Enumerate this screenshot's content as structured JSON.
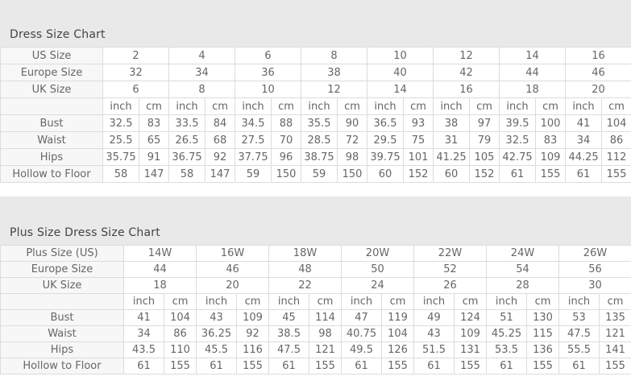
{
  "colors": {
    "page_bg": "#ffffff",
    "panel_bg": "#e9e9e9",
    "border": "#dcdcdc",
    "label_bg": "#f7f7f7",
    "cell_bg": "#ffffff",
    "title_text": "#444444",
    "cell_text": "#666666"
  },
  "tables": [
    {
      "title": "Dress Size Chart",
      "units": {
        "inch": "inch",
        "cm": "cm"
      },
      "size_rows": [
        {
          "label": "US Size",
          "values": [
            "2",
            "4",
            "6",
            "8",
            "10",
            "12",
            "14",
            "16"
          ]
        },
        {
          "label": "Europe Size",
          "values": [
            "32",
            "34",
            "36",
            "38",
            "40",
            "42",
            "44",
            "46"
          ]
        },
        {
          "label": "UK Size",
          "values": [
            "6",
            "8",
            "10",
            "12",
            "14",
            "16",
            "18",
            "20"
          ]
        }
      ],
      "measure_rows": [
        {
          "label": "Bust",
          "pairs": [
            [
              "32.5",
              "83"
            ],
            [
              "33.5",
              "84"
            ],
            [
              "34.5",
              "88"
            ],
            [
              "35.5",
              "90"
            ],
            [
              "36.5",
              "93"
            ],
            [
              "38",
              "97"
            ],
            [
              "39.5",
              "100"
            ],
            [
              "41",
              "104"
            ]
          ]
        },
        {
          "label": "Waist",
          "pairs": [
            [
              "25.5",
              "65"
            ],
            [
              "26.5",
              "68"
            ],
            [
              "27.5",
              "70"
            ],
            [
              "28.5",
              "72"
            ],
            [
              "29.5",
              "75"
            ],
            [
              "31",
              "79"
            ],
            [
              "32.5",
              "83"
            ],
            [
              "34",
              "86"
            ]
          ]
        },
        {
          "label": "Hips",
          "pairs": [
            [
              "35.75",
              "91"
            ],
            [
              "36.75",
              "92"
            ],
            [
              "37.75",
              "96"
            ],
            [
              "38.75",
              "98"
            ],
            [
              "39.75",
              "101"
            ],
            [
              "41.25",
              "105"
            ],
            [
              "42.75",
              "109"
            ],
            [
              "44.25",
              "112"
            ]
          ]
        },
        {
          "label": "Hollow to Floor",
          "pairs": [
            [
              "58",
              "147"
            ],
            [
              "58",
              "147"
            ],
            [
              "59",
              "150"
            ],
            [
              "59",
              "150"
            ],
            [
              "60",
              "152"
            ],
            [
              "60",
              "152"
            ],
            [
              "61",
              "155"
            ],
            [
              "61",
              "155"
            ]
          ]
        }
      ]
    },
    {
      "title": "Plus Size Dress Size Chart",
      "units": {
        "inch": "inch",
        "cm": "cm"
      },
      "size_rows": [
        {
          "label": "Plus Size (US)",
          "values": [
            "14W",
            "16W",
            "18W",
            "20W",
            "22W",
            "24W",
            "26W"
          ]
        },
        {
          "label": "Europe Size",
          "values": [
            "44",
            "46",
            "48",
            "50",
            "52",
            "54",
            "56"
          ]
        },
        {
          "label": "UK Size",
          "values": [
            "18",
            "20",
            "22",
            "24",
            "26",
            "28",
            "30"
          ]
        }
      ],
      "measure_rows": [
        {
          "label": "Bust",
          "pairs": [
            [
              "41",
              "104"
            ],
            [
              "43",
              "109"
            ],
            [
              "45",
              "114"
            ],
            [
              "47",
              "119"
            ],
            [
              "49",
              "124"
            ],
            [
              "51",
              "130"
            ],
            [
              "53",
              "135"
            ]
          ]
        },
        {
          "label": "Waist",
          "pairs": [
            [
              "34",
              "86"
            ],
            [
              "36.25",
              "92"
            ],
            [
              "38.5",
              "98"
            ],
            [
              "40.75",
              "104"
            ],
            [
              "43",
              "109"
            ],
            [
              "45.25",
              "115"
            ],
            [
              "47.5",
              "121"
            ]
          ]
        },
        {
          "label": "Hips",
          "pairs": [
            [
              "43.5",
              "110"
            ],
            [
              "45.5",
              "116"
            ],
            [
              "47.5",
              "121"
            ],
            [
              "49.5",
              "126"
            ],
            [
              "51.5",
              "131"
            ],
            [
              "53.5",
              "136"
            ],
            [
              "55.5",
              "141"
            ]
          ]
        },
        {
          "label": "Hollow to Floor",
          "pairs": [
            [
              "61",
              "155"
            ],
            [
              "61",
              "155"
            ],
            [
              "61",
              "155"
            ],
            [
              "61",
              "155"
            ],
            [
              "61",
              "155"
            ],
            [
              "61",
              "155"
            ],
            [
              "61",
              "155"
            ]
          ]
        }
      ]
    }
  ]
}
